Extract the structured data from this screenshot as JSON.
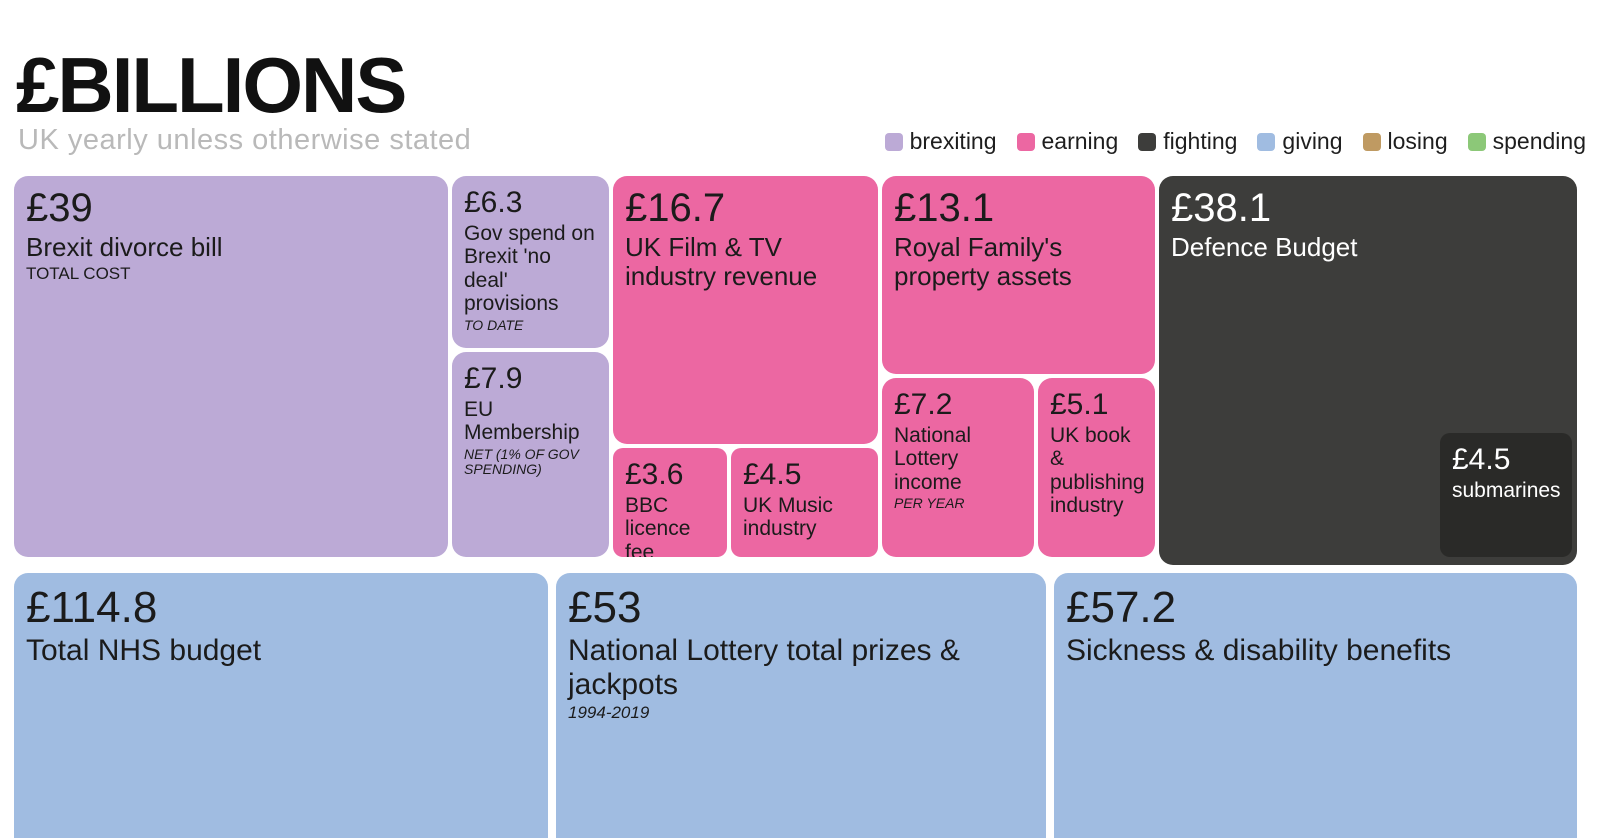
{
  "header": {
    "title": "£BILLIONS",
    "subtitle": "UK yearly unless otherwise stated"
  },
  "legend": [
    {
      "label": "brexiting",
      "color": "#bcaad6"
    },
    {
      "label": "earning",
      "color": "#ec67a2"
    },
    {
      "label": "fighting",
      "color": "#3d3d3b"
    },
    {
      "label": "giving",
      "color": "#a0bce1"
    },
    {
      "label": "losing",
      "color": "#bf9a62"
    },
    {
      "label": "spending",
      "color": "#8cc878"
    }
  ],
  "chart_data": {
    "type": "treemap",
    "title": "£BILLIONS",
    "subtitle": "UK yearly unless otherwise stated",
    "unit": "£ billions",
    "legend_position": "top-right",
    "groups": [
      "brexiting",
      "earning",
      "fighting",
      "giving",
      "losing",
      "spending"
    ],
    "tiles": [
      {
        "group": "brexiting",
        "value": 39,
        "value_label": "£39",
        "label": "Brexit divorce bill",
        "caption": "TOTAL COST",
        "color": "#bcaad6"
      },
      {
        "group": "brexiting",
        "value": 6.3,
        "value_label": "£6.3",
        "label": "Gov spend on Brexit 'no deal' provisions",
        "caption": "TO DATE",
        "color": "#bcaad6"
      },
      {
        "group": "brexiting",
        "value": 7.9,
        "value_label": "£7.9",
        "label": "EU Membership",
        "caption": "NET (1% OF GOV SPENDING)",
        "color": "#bcaad6"
      },
      {
        "group": "earning",
        "value": 16.7,
        "value_label": "£16.7",
        "label": "UK Film & TV industry revenue",
        "caption": "",
        "color": "#ec67a2"
      },
      {
        "group": "earning",
        "value": 3.6,
        "value_label": "£3.6",
        "label": "BBC licence fee revenue",
        "caption": "",
        "color": "#ec67a2"
      },
      {
        "group": "earning",
        "value": 4.5,
        "value_label": "£4.5",
        "label": "UK Music industry",
        "caption": "",
        "color": "#ec67a2"
      },
      {
        "group": "earning",
        "value": 13.1,
        "value_label": "£13.1",
        "label": "Royal Family's property assets",
        "caption": "",
        "color": "#ec67a2"
      },
      {
        "group": "earning",
        "value": 7.2,
        "value_label": "£7.2",
        "label": "National Lottery income",
        "caption": "PER YEAR",
        "color": "#ec67a2"
      },
      {
        "group": "earning",
        "value": 5.1,
        "value_label": "£5.1",
        "label": "UK book & publishing industry",
        "caption": "",
        "color": "#ec67a2"
      },
      {
        "group": "fighting",
        "value": 38.1,
        "value_label": "£38.1",
        "label": "Defence Budget",
        "caption": "",
        "color": "#3d3d3b"
      },
      {
        "group": "fighting",
        "value": 4.5,
        "value_label": "£4.5",
        "label": "submarines",
        "parent": "Defence Budget",
        "caption": "",
        "color": "#2a2a28"
      },
      {
        "group": "giving",
        "value": 114.8,
        "value_label": "£114.8",
        "label": "Total NHS budget",
        "caption": "",
        "color": "#a0bce1"
      },
      {
        "group": "giving",
        "value": 53,
        "value_label": "£53",
        "label": "National Lottery total prizes & jackpots",
        "caption": "1994-2019",
        "color": "#a0bce1"
      },
      {
        "group": "giving",
        "value": 57.2,
        "value_label": "£57.2",
        "label": "Sickness & disability benefits",
        "caption": "",
        "color": "#a0bce1"
      }
    ]
  }
}
